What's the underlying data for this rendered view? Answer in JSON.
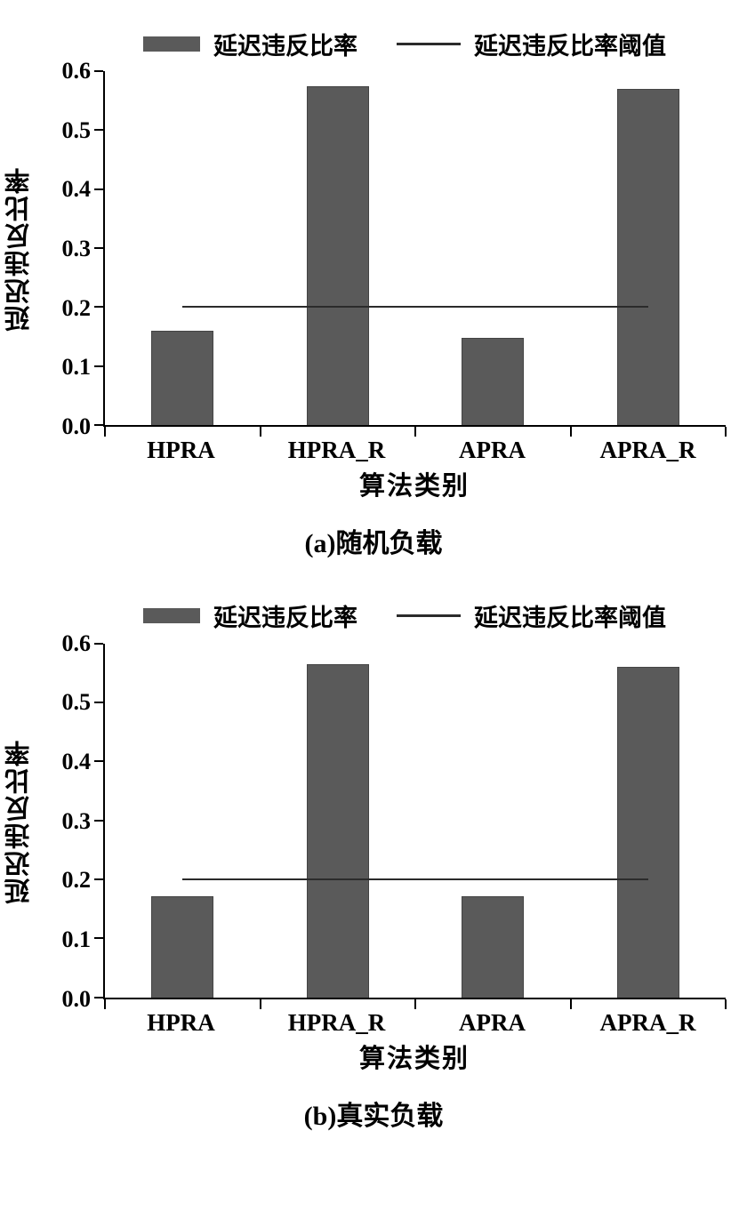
{
  "colors": {
    "bar": "#5a5a5a",
    "threshold_line": "#2b2b2b",
    "axis": "#000000"
  },
  "chart_data": [
    {
      "type": "bar",
      "title": "",
      "categories": [
        "HPRA",
        "HPRA_R",
        "APRA",
        "APRA_R"
      ],
      "series": [
        {
          "name": "延迟违反比率",
          "type": "bar",
          "values": [
            0.16,
            0.575,
            0.148,
            0.57
          ]
        },
        {
          "name": "延迟违反比率阈值",
          "type": "line",
          "value": 0.2
        }
      ],
      "xlabel": "算法类别",
      "ylabel": "延迟违反比率",
      "ylim": [
        0.0,
        0.6
      ],
      "ytick_step": 0.1,
      "grid": false,
      "legend_position": "top",
      "caption": "(a)随机负载"
    },
    {
      "type": "bar",
      "title": "",
      "categories": [
        "HPRA",
        "HPRA_R",
        "APRA",
        "APRA_R"
      ],
      "series": [
        {
          "name": "延迟违反比率",
          "type": "bar",
          "values": [
            0.172,
            0.565,
            0.172,
            0.56
          ]
        },
        {
          "name": "延迟违反比率阈值",
          "type": "line",
          "value": 0.2
        }
      ],
      "xlabel": "算法类别",
      "ylabel": "延迟违反比率",
      "ylim": [
        0.0,
        0.6
      ],
      "ytick_step": 0.1,
      "grid": false,
      "legend_position": "top",
      "caption": "(b)真实负载"
    }
  ]
}
